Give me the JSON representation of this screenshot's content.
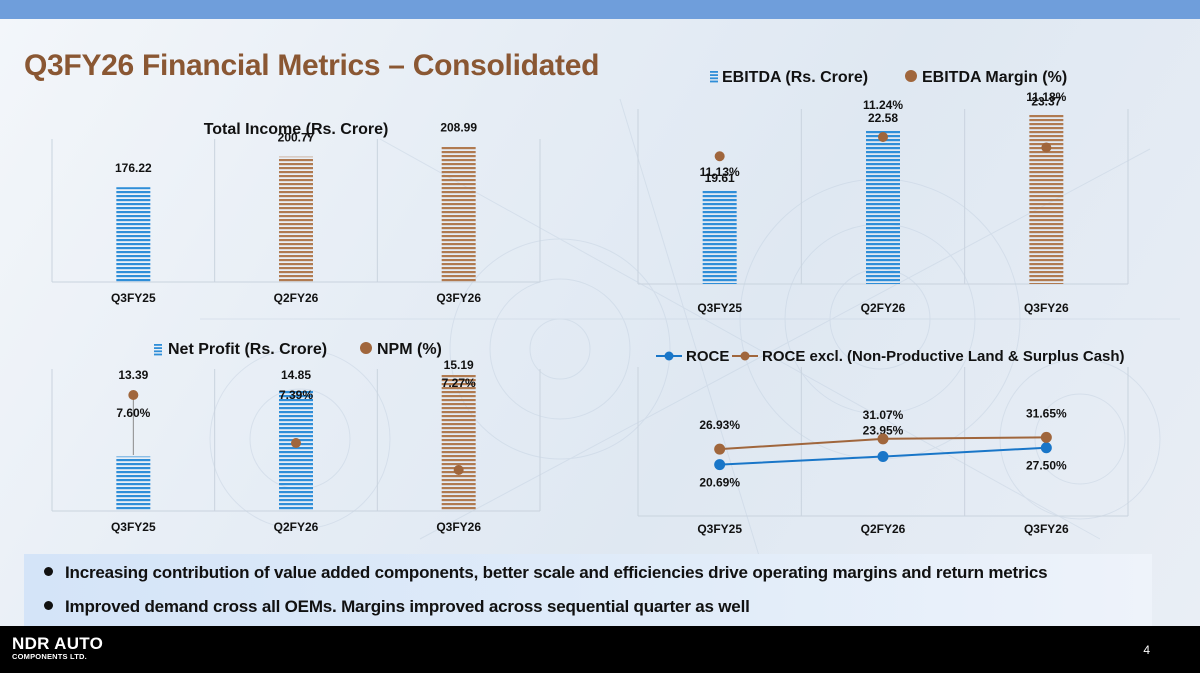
{
  "page": {
    "title": "Q3FY26 Financial Metrics – Consolidated",
    "page_number": "4",
    "logo": {
      "line1": "NDR AUTO",
      "line2": "COMPONENTS LTD."
    },
    "bullets": [
      "Increasing contribution of value added components, better scale and efficiencies drive operating margins and return metrics",
      "Improved demand cross all OEMs. Margins improved across sequential quarter as well"
    ]
  },
  "colors": {
    "blue": "#1976c8",
    "brown": "#a0663c",
    "title": "#8a5733",
    "bar_blue": "#2f8ed8",
    "bar_brown": "#b07a50"
  },
  "chart_data": [
    {
      "id": "total-income",
      "type": "bar",
      "title": "Total Income (Rs. Crore)",
      "categories": [
        "Q3FY25",
        "Q2FY26",
        "Q3FY26"
      ],
      "values": [
        176.22,
        200.77,
        208.99
      ],
      "value_labels": [
        "176.22",
        "200.77",
        "208.99"
      ],
      "bar_colors": [
        "blue",
        "brown",
        "brown"
      ],
      "ylim": [
        100,
        215
      ]
    },
    {
      "id": "ebitda",
      "type": "bar",
      "legend": [
        "EBITDA (Rs. Crore)",
        "EBITDA Margin (%)"
      ],
      "legend_position": "top",
      "categories": [
        "Q3FY25",
        "Q2FY26",
        "Q3FY26"
      ],
      "series": [
        {
          "name": "EBITDA (Rs. Crore)",
          "values": [
            19.61,
            22.58,
            23.37
          ],
          "labels": [
            "19.61",
            "22.58",
            "23.37"
          ]
        },
        {
          "name": "EBITDA Margin (%)",
          "values": [
            11.13,
            11.24,
            11.18
          ],
          "labels": [
            "11.13%",
            "11.24%",
            "11.18%"
          ]
        }
      ],
      "bar_colors": [
        "blue",
        "blue",
        "brown"
      ],
      "ylim": [
        15,
        23.6
      ]
    },
    {
      "id": "net-profit",
      "type": "bar",
      "legend": [
        "Net Profit (Rs. Crore)",
        "NPM (%)"
      ],
      "legend_position": "top",
      "categories": [
        "Q3FY25",
        "Q2FY26",
        "Q3FY26"
      ],
      "series": [
        {
          "name": "Net Profit (Rs. Crore)",
          "values": [
            13.39,
            14.85,
            15.19
          ],
          "labels": [
            "13.39",
            "14.85",
            "15.19"
          ]
        },
        {
          "name": "NPM (%)",
          "values": [
            7.6,
            7.39,
            7.27
          ],
          "labels": [
            "7.60%",
            "7.39%",
            "7.27%"
          ]
        }
      ],
      "bar_colors": [
        "blue",
        "blue",
        "brown"
      ],
      "ylim": [
        12.2,
        15.3
      ]
    },
    {
      "id": "roce",
      "type": "line",
      "legend": [
        "ROCE",
        "ROCE excl. (Non-Productive Land & Surplus Cash)"
      ],
      "legend_position": "top",
      "categories": [
        "Q3FY25",
        "Q2FY26",
        "Q3FY26"
      ],
      "series": [
        {
          "name": "ROCE",
          "values": [
            20.69,
            23.95,
            27.5
          ],
          "labels": [
            "20.69%",
            "23.95%",
            "27.50%"
          ]
        },
        {
          "name": "ROCE excl. (Non-Productive Land & Surplus Cash)",
          "values": [
            26.93,
            31.07,
            31.65
          ],
          "labels": [
            "26.93%",
            "31.07%",
            "31.65%"
          ]
        }
      ],
      "ylim": [
        0,
        60
      ]
    }
  ]
}
